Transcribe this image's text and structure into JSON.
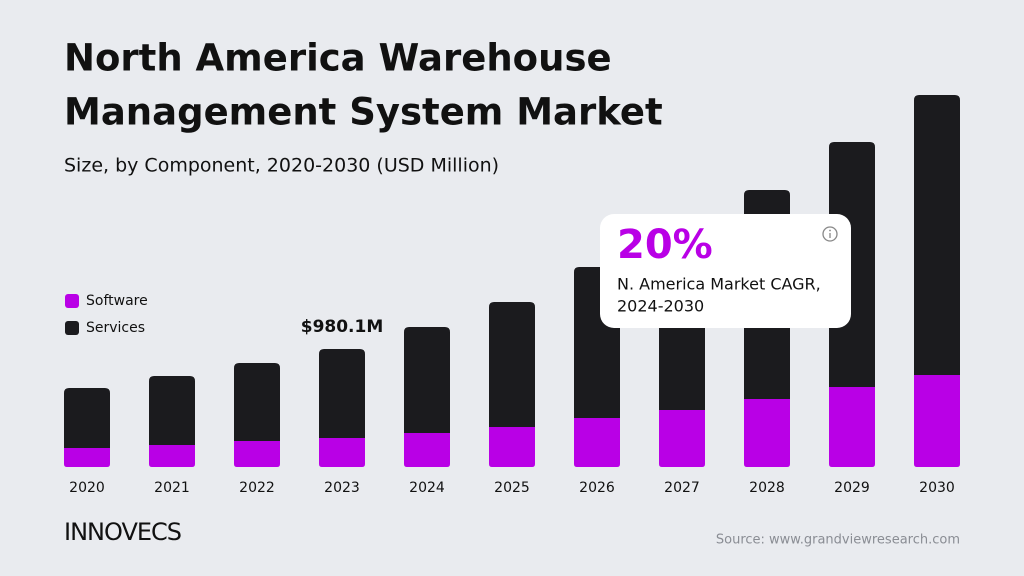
{
  "chart_data": {
    "type": "stacked-bar",
    "title_lines": [
      "North America Warehouse",
      "Management System Market"
    ],
    "subtitle": "Size, by Component, 2020-2030 (USD Million)",
    "categories": [
      "2020",
      "2021",
      "2022",
      "2023",
      "2024",
      "2025",
      "2026",
      "2027",
      "2028",
      "2029",
      "2030"
    ],
    "series": [
      {
        "name": "Software",
        "color": "#b900e6",
        "values": [
          158,
          183,
          216,
          241,
          282,
          332,
          407,
          473,
          565,
          664,
          764
        ]
      },
      {
        "name": "Services",
        "color": "#1b1b1e",
        "values": [
          498,
          573,
          648,
          739.1,
          881,
          1038,
          1254,
          1512,
          1735,
          2035,
          2325
        ]
      }
    ],
    "annotation": {
      "category": "2023",
      "value": 980.1,
      "label": "$980.1M"
    },
    "callout": {
      "headline": "20%",
      "lines": [
        "N. America Market CAGR,",
        "2024-2030"
      ]
    },
    "logo": "INNOVECS",
    "source": "Source: www.grandviewresearch.com"
  }
}
